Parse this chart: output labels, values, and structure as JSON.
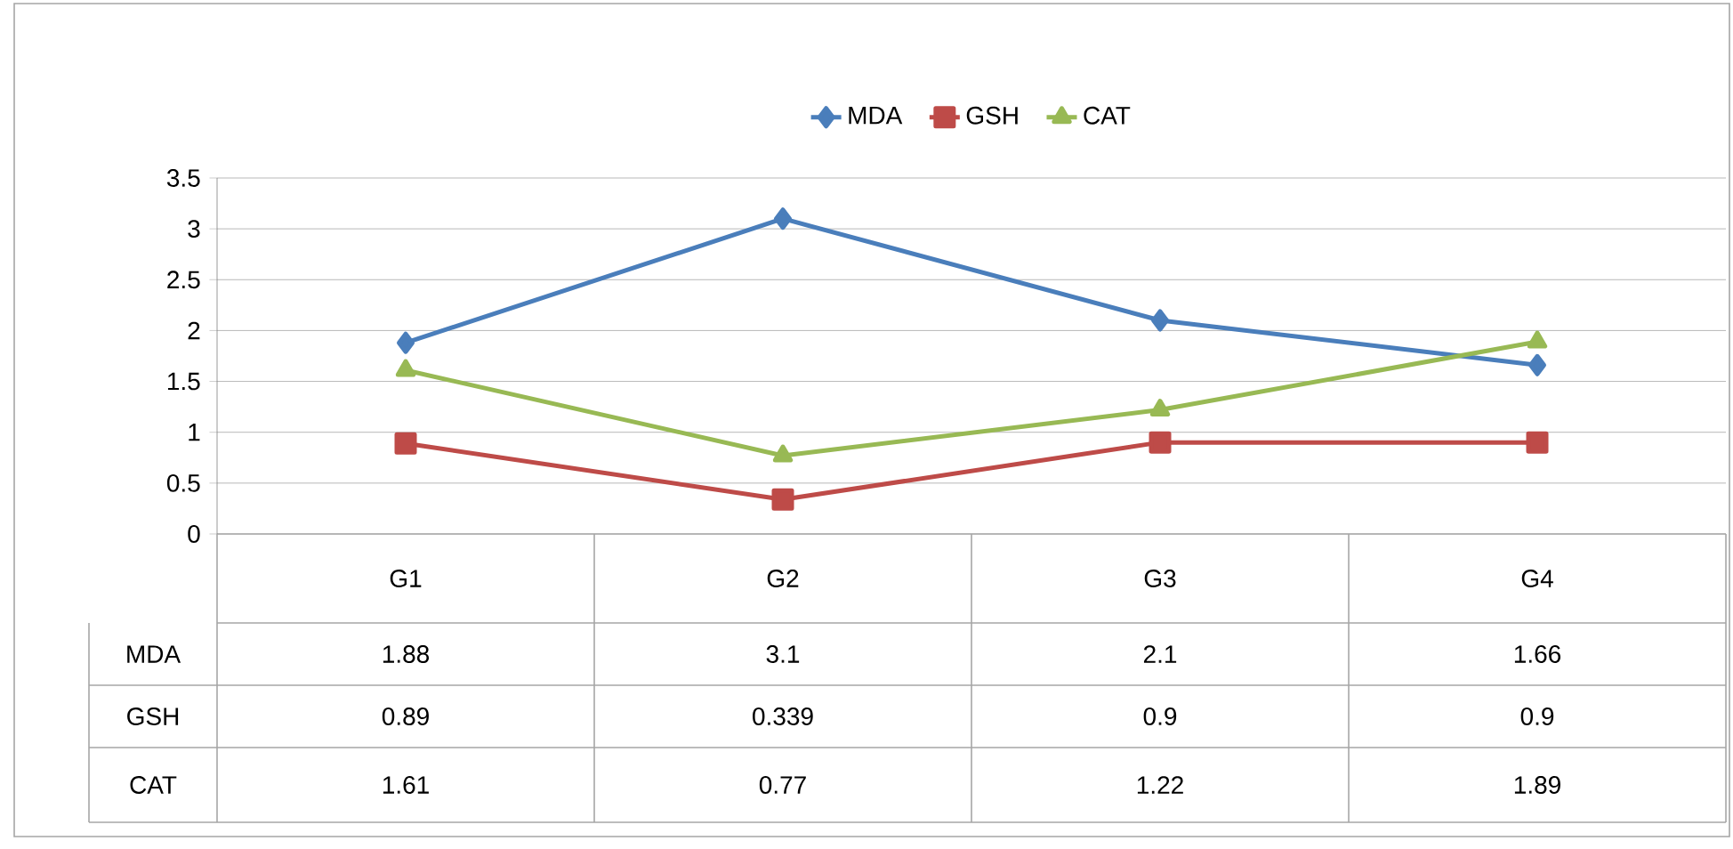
{
  "chart_data": {
    "type": "line",
    "categories": [
      "G1",
      "G2",
      "G3",
      "G4"
    ],
    "series": [
      {
        "name": "MDA",
        "color": "#4a7ebb",
        "marker": "diamond",
        "values": [
          1.88,
          3.1,
          2.1,
          1.66
        ]
      },
      {
        "name": "GSH",
        "color": "#be4b48",
        "marker": "square",
        "values": [
          0.89,
          0.339,
          0.9,
          0.9
        ]
      },
      {
        "name": "CAT",
        "color": "#98b954",
        "marker": "triangle",
        "values": [
          1.61,
          0.77,
          1.22,
          1.89
        ]
      }
    ],
    "ylim": [
      0,
      3.5
    ],
    "yticks": [
      0,
      0.5,
      1,
      1.5,
      2,
      2.5,
      3,
      3.5
    ],
    "grid": "y",
    "legend": "top",
    "data_labels": true
  }
}
